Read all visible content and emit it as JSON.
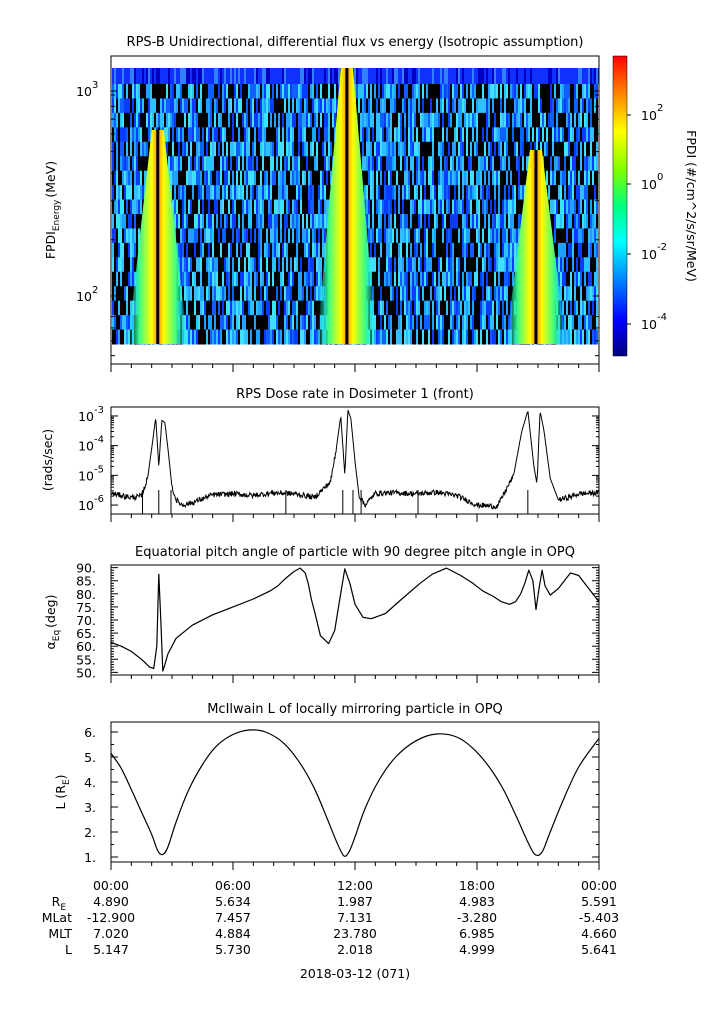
{
  "panels": [
    {
      "id": "spectrogram",
      "title": "RPS-B  Unidirectional, differential flux vs energy (Isotropic assumption)",
      "ylabel_main": "FPDI",
      "ylabel_sub": "Energy",
      "ylabel_unit": "(MeV)",
      "yticks": [
        {
          "base": "10",
          "exp": "3",
          "value": 1000
        },
        {
          "base": "10",
          "exp": "2",
          "value": 100
        }
      ],
      "colorbar": {
        "label": "FPDI (#/cm^2/s/sr/MeV)",
        "ticks": [
          {
            "base": "10",
            "exp": "2",
            "value": 100
          },
          {
            "base": "10",
            "exp": "0",
            "value": 1
          },
          {
            "base": "10",
            "exp": "-2",
            "value": 0.01
          },
          {
            "base": "10",
            "exp": "-4",
            "value": 0.0001
          }
        ],
        "colors": [
          "#000080",
          "#0000ff",
          "#0080ff",
          "#00ffff",
          "#00ff80",
          "#80ff00",
          "#ffff00",
          "#ff8000",
          "#ff0000"
        ]
      }
    },
    {
      "id": "dose",
      "title": "RPS  Dose rate in Dosimeter 1 (front)",
      "ylabel": "(rads/sec)",
      "yticks": [
        {
          "base": "10",
          "exp": "-3",
          "value": 0.001
        },
        {
          "base": "10",
          "exp": "-4",
          "value": 0.0001
        },
        {
          "base": "10",
          "exp": "-5",
          "value": 1e-05
        },
        {
          "base": "10",
          "exp": "-6",
          "value": 1e-06
        }
      ]
    },
    {
      "id": "pitch",
      "title": "Equatorial pitch angle of particle with 90 degree pitch angle in OPQ",
      "ylabel_main": "α",
      "ylabel_sub": "Eq",
      "ylabel_unit": "(deg)",
      "yticks": [
        "90.",
        "85.",
        "80.",
        "75.",
        "70.",
        "65.",
        "60.",
        "55.",
        "50."
      ]
    },
    {
      "id": "lshell",
      "title": "McIlwain L of locally mirroring particle in OPQ",
      "ylabel_main": "L (R",
      "ylabel_sub": "E",
      "ylabel_end": ")",
      "yticks": [
        "6.",
        "5.",
        "4.",
        "3.",
        "2.",
        "1."
      ]
    }
  ],
  "xaxis": {
    "ticks": [
      "00:00",
      "06:00",
      "12:00",
      "18:00",
      "00:00"
    ],
    "date_label": "2018-03-12 (071)"
  },
  "ephemeris": [
    {
      "name": "R",
      "sub": "E",
      "values": [
        "4.890",
        "5.634",
        "1.987",
        "4.983",
        "5.591"
      ]
    },
    {
      "name": "MLat",
      "sub": "",
      "values": [
        "-12.900",
        "7.457",
        "7.131",
        "-3.280",
        "-5.403"
      ]
    },
    {
      "name": "MLT",
      "sub": "",
      "values": [
        "7.020",
        "4.884",
        "23.780",
        "6.985",
        "4.660"
      ]
    },
    {
      "name": "L",
      "sub": "",
      "values": [
        "5.147",
        "5.730",
        "2.018",
        "4.999",
        "5.641"
      ]
    }
  ],
  "chart_data": [
    {
      "type": "heatmap",
      "title": "RPS-B  Unidirectional, differential flux vs energy (Isotropic assumption)",
      "xlabel": "",
      "ylabel": "FPDI Energy (MeV)",
      "x_range_hours": [
        0,
        24
      ],
      "y_range_mev": [
        55,
        1350
      ],
      "y_scale": "log",
      "z_range": [
        1e-05,
        1000
      ],
      "z_scale": "log",
      "perigee_bands_hours": [
        2.3,
        11.6,
        20.9
      ],
      "peak_flux": 10
    },
    {
      "type": "line",
      "title": "RPS  Dose rate in Dosimeter 1 (front)",
      "ylabel": "(rads/sec)",
      "y_scale": "log",
      "ylim": [
        5e-07,
        0.002
      ],
      "x_hours": [
        0,
        1,
        1.5,
        1.8,
        2.0,
        2.2,
        2.35,
        2.5,
        2.65,
        2.8,
        3.0,
        3.2,
        3.5,
        4.0,
        5,
        6,
        7,
        8,
        9,
        10,
        10.8,
        11.1,
        11.3,
        11.5,
        11.65,
        11.8,
        12.0,
        12.2,
        12.5,
        13,
        14,
        15,
        16,
        17,
        18,
        19,
        19.8,
        20.2,
        20.5,
        20.8,
        20.95,
        21.1,
        21.3,
        21.6,
        22,
        22.5,
        23,
        24
      ],
      "y": [
        2.5e-06,
        1.8e-06,
        2e-06,
        8e-06,
        8e-05,
        0.0009,
        2e-05,
        0.0007,
        0.0006,
        8e-05,
        4e-06,
        1.5e-06,
        1e-06,
        1.2e-06,
        2.2e-06,
        2.4e-06,
        2.1e-06,
        2.6e-06,
        2.4e-06,
        1.8e-06,
        6e-06,
        0.0001,
        0.001,
        1e-05,
        0.0016,
        0.0008,
        3e-05,
        2e-06,
        1e-06,
        2.5e-06,
        2.6e-06,
        2.4e-06,
        2.7e-06,
        2.1e-06,
        1e-06,
        9e-07,
        1e-05,
        0.0003,
        0.0015,
        2e-05,
        5e-06,
        0.0015,
        0.0003,
        8e-06,
        1.5e-06,
        1.8e-06,
        2.4e-06,
        2.6e-06
      ]
    },
    {
      "type": "line",
      "title": "Equatorial pitch angle of particle with 90 degree pitch angle in OPQ",
      "ylabel": "α Eq (deg)",
      "ylim": [
        49,
        91
      ],
      "x_hours": [
        0,
        0.5,
        1,
        1.5,
        1.9,
        2.1,
        2.25,
        2.35,
        2.45,
        2.55,
        2.65,
        2.8,
        3.2,
        4,
        5,
        6,
        7,
        7.8,
        8.2,
        8.6,
        9.0,
        9.3,
        9.55,
        9.7,
        9.85,
        10.05,
        10.3,
        10.7,
        11.0,
        11.25,
        11.5,
        11.75,
        12.0,
        12.4,
        12.8,
        13.5,
        14.3,
        15.2,
        15.8,
        16.5,
        17.2,
        17.8,
        18.3,
        18.8,
        19.2,
        19.6,
        19.9,
        20.15,
        20.35,
        20.55,
        20.75,
        20.9,
        21.05,
        21.2,
        21.35,
        21.6,
        22.0,
        22.3,
        22.6,
        23.0,
        23.5,
        24
      ],
      "y": [
        61.5,
        60,
        58,
        55,
        52,
        51.5,
        60,
        87.5,
        70,
        50.5,
        53,
        57,
        63,
        68,
        72,
        75,
        78,
        81,
        83,
        86,
        88.5,
        89.8,
        88,
        84,
        78,
        72,
        64,
        61,
        66,
        78,
        89.5,
        84,
        76,
        71,
        70.5,
        72.5,
        78,
        84,
        87.5,
        89.8,
        87,
        84,
        81,
        79,
        77,
        76,
        77,
        80,
        84,
        89,
        85,
        74,
        82,
        89,
        83,
        79.5,
        82,
        85,
        88,
        87,
        82,
        77
      ]
    },
    {
      "type": "line",
      "title": "McIlwain L of locally mirroring particle in OPQ",
      "ylabel": "L (RE)",
      "ylim": [
        0.8,
        6.4
      ],
      "x_hours": [
        0,
        0.5,
        1.0,
        1.5,
        2.0,
        2.3,
        2.55,
        2.8,
        3.2,
        3.8,
        4.5,
        5.2,
        6.0,
        6.8,
        7.6,
        8.5,
        9.3,
        10.0,
        10.6,
        11.1,
        11.45,
        11.7,
        12.0,
        12.5,
        13.2,
        14.0,
        15.0,
        16.0,
        17.0,
        17.8,
        18.6,
        19.3,
        20.0,
        20.5,
        20.85,
        21.2,
        21.6,
        22.2,
        23.0,
        24
      ],
      "y": [
        5.15,
        4.55,
        3.7,
        2.8,
        1.9,
        1.25,
        1.1,
        1.4,
        2.4,
        3.65,
        4.7,
        5.45,
        5.9,
        6.08,
        6.0,
        5.55,
        4.75,
        3.75,
        2.6,
        1.6,
        1.05,
        1.2,
        1.8,
        2.95,
        4.1,
        5.0,
        5.65,
        5.92,
        5.8,
        5.35,
        4.6,
        3.7,
        2.5,
        1.6,
        1.1,
        1.2,
        2.0,
        3.2,
        4.6,
        5.75
      ]
    }
  ]
}
